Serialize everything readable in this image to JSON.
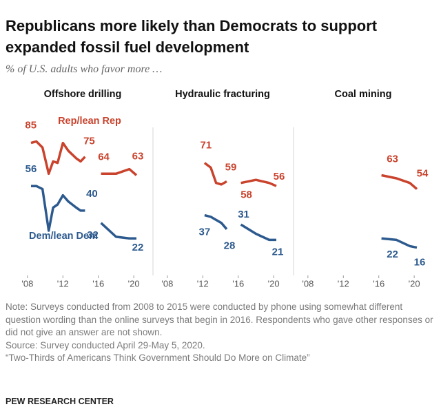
{
  "title": "Republicans more likely than Democrats to support expanded fossil fuel development",
  "subtitle": "% of U.S. adults who favor more …",
  "chart_data": [
    {
      "type": "line",
      "title": "Offshore drilling",
      "x": [
        2008.4,
        2009,
        2009.7,
        2010.4,
        2010.9,
        2011.4,
        2012,
        2012.6,
        2013.5,
        2014,
        2014.5,
        2015.3,
        2016.3,
        2018,
        2019.5,
        2020.3
      ],
      "series": [
        {
          "name": "Rep/lean Rep",
          "color": "#c9432d",
          "values": [
            84,
            85,
            81,
            64,
            72,
            71,
            84,
            79,
            74,
            72,
            75,
            null,
            64,
            64,
            67,
            63
          ]
        },
        {
          "name": "Dem/lean Dem",
          "color": "#2d5a8e",
          "values": [
            56,
            56,
            54,
            27,
            42,
            44,
            50,
            46,
            42,
            40,
            40,
            null,
            32,
            23,
            22,
            22
          ]
        }
      ],
      "xlim": [
        2007,
        2021
      ],
      "xticks": [
        {
          "value": 2008,
          "label": "'08"
        },
        {
          "value": 2012,
          "label": "'12"
        },
        {
          "value": 2016,
          "label": "'16"
        },
        {
          "value": 2020,
          "label": "'20"
        }
      ],
      "ylim": [
        10,
        95
      ]
    },
    {
      "type": "line",
      "title": "Hydraulic fracturing",
      "x": [
        2012.2,
        2012.9,
        2013.5,
        2014.1,
        2014.7,
        2015.5,
        2016.3,
        2018,
        2019.5,
        2020.3
      ],
      "series": [
        {
          "name": "Rep/lean Rep",
          "color": "#c9432d",
          "values": [
            71,
            68,
            58,
            57,
            59,
            null,
            58,
            60,
            58,
            56
          ]
        },
        {
          "name": "Dem/lean Dem",
          "color": "#2d5a8e",
          "values": [
            37,
            36,
            34,
            32,
            28,
            null,
            31,
            25,
            21,
            21
          ]
        }
      ],
      "xlim": [
        2007,
        2021
      ],
      "xticks": [
        {
          "value": 2008,
          "label": "'08"
        },
        {
          "value": 2012,
          "label": "'12"
        },
        {
          "value": 2016,
          "label": "'16"
        },
        {
          "value": 2020,
          "label": "'20"
        }
      ],
      "ylim": [
        10,
        95
      ]
    },
    {
      "type": "line",
      "title": "Coal mining",
      "x": [
        2016.3,
        2018,
        2019.5,
        2020.3
      ],
      "series": [
        {
          "name": "Rep/lean Rep",
          "color": "#c9432d",
          "values": [
            63,
            61,
            58,
            54
          ]
        },
        {
          "name": "Dem/lean Dem",
          "color": "#2d5a8e",
          "values": [
            22,
            21,
            17,
            16
          ]
        }
      ],
      "xlim": [
        2007,
        2021
      ],
      "xticks": [
        {
          "value": 2008,
          "label": "'08"
        },
        {
          "value": 2012,
          "label": "'12"
        },
        {
          "value": 2016,
          "label": "'16"
        },
        {
          "value": 2020,
          "label": "'20"
        }
      ],
      "ylim": [
        10,
        95
      ]
    }
  ],
  "note": "Note: Surveys conducted from 2008 to 2015 were conducted by phone using somewhat different question wording than the online surveys that begin in 2016. Respondents who gave other responses or did not give an answer are not shown.",
  "source": "Source: Survey conducted April 29-May 5, 2020.",
  "report": "“Two-Thirds of Americans Think Government Should Do More on Climate”",
  "brand": "PEW RESEARCH CENTER"
}
